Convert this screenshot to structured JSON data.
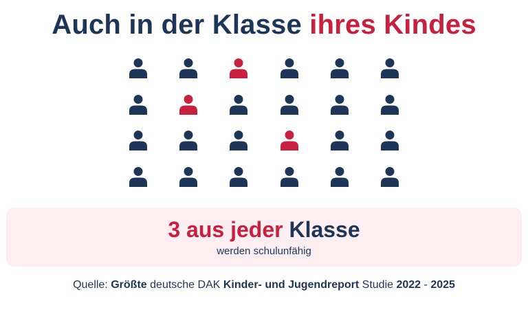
{
  "title": {
    "part1": "Auch in der Klasse",
    "part2": "ihres Kindes"
  },
  "icon_grid": {
    "icon": "person-icon",
    "rows": 4,
    "columns": 6,
    "highlighted": [
      [
        false,
        false,
        true,
        false,
        false,
        false
      ],
      [
        false,
        true,
        false,
        false,
        false,
        false
      ],
      [
        false,
        false,
        false,
        true,
        false,
        false
      ],
      [
        false,
        false,
        false,
        false,
        false,
        false
      ]
    ]
  },
  "callout": {
    "count": "3",
    "highlight": "aus jeder",
    "tail": "Klasse",
    "subtitle": "werden schulunfähig"
  },
  "source": {
    "label": "Quelle:",
    "s1": "Größte",
    "s2": "deutsche DAK",
    "s3": "Kinder- und Jugendreport",
    "s4": "Studie",
    "year_start": "2022",
    "dash": "-",
    "year_end": "2025"
  },
  "colors": {
    "navy": "#1d3557",
    "red": "#c8203f",
    "callout_bg": "#fdeff1"
  }
}
